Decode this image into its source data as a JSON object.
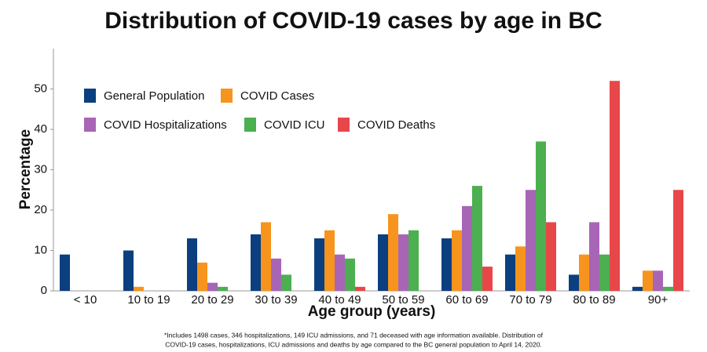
{
  "chart_data": {
    "type": "bar",
    "title": "Distribution of COVID-19 cases by age in BC",
    "y_label": "Percentage",
    "x_label": "Age group (years)",
    "footnote": [
      "*Includes 1498 cases, 346 hospitalizations, 149 ICU admissions, and 71 deceased with age information available. Distribution of",
      "COVID-19 cases, hospitalizations, ICU admissions and deaths by age compared to the BC general population to April 14, 2020."
    ],
    "categories": [
      "< 10",
      "10 to 19",
      "20 to 29",
      "30 to 39",
      "40 to 49",
      "50 to 59",
      "60 to 69",
      "70 to 79",
      "80 to 89",
      "90+"
    ],
    "series": [
      {
        "name": "General Population",
        "color": "#0b3f7f",
        "values": [
          9,
          10,
          13,
          14,
          13,
          14,
          13,
          9,
          4,
          1
        ]
      },
      {
        "name": "COVID Cases",
        "color": "#f7941d",
        "values": [
          0,
          1,
          7,
          17,
          15,
          19,
          15,
          11,
          9,
          5
        ]
      },
      {
        "name": "COVID Hospitalizations",
        "color": "#a865b5",
        "values": [
          0,
          0,
          2,
          8,
          9,
          14,
          21,
          25,
          17,
          5
        ]
      },
      {
        "name": "COVID ICU",
        "color": "#4caf50",
        "values": [
          0,
          0,
          1,
          4,
          8,
          15,
          26,
          37,
          9,
          1
        ]
      },
      {
        "name": "COVID Deaths",
        "color": "#e8474a",
        "values": [
          0,
          0,
          0,
          0,
          1,
          0,
          6,
          17,
          52,
          25
        ]
      }
    ],
    "ylim": [
      0,
      60
    ],
    "yticks": [
      0,
      10,
      20,
      30,
      40,
      50
    ],
    "grid": false
  }
}
